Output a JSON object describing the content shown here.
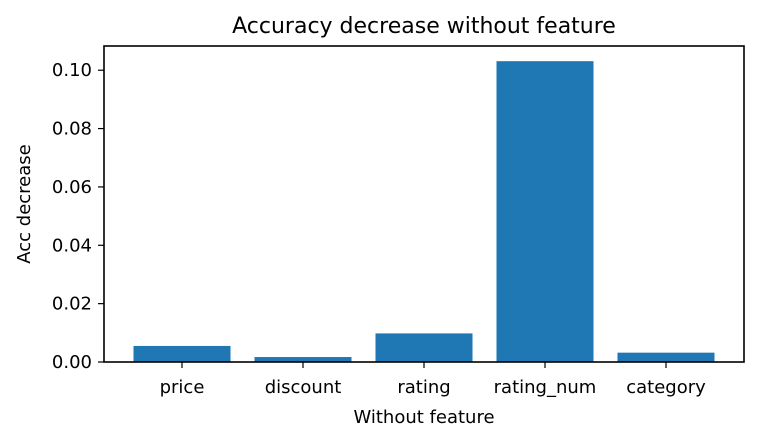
{
  "chart_data": {
    "type": "bar",
    "title": "Accuracy decrease without feature",
    "xlabel": "Without feature",
    "ylabel": "Acc decrease",
    "categories": [
      "price",
      "discount",
      "rating",
      "rating_num",
      "category"
    ],
    "values": [
      0.0055,
      0.0017,
      0.0098,
      0.1031,
      0.0032
    ],
    "ylim": [
      0,
      0.1083
    ],
    "yticks": [
      0.0,
      0.02,
      0.04,
      0.06,
      0.08,
      0.1
    ],
    "ytick_labels": [
      "0.00",
      "0.02",
      "0.04",
      "0.06",
      "0.08",
      "0.10"
    ],
    "bar_color": "#1f77b4",
    "grid": false
  }
}
